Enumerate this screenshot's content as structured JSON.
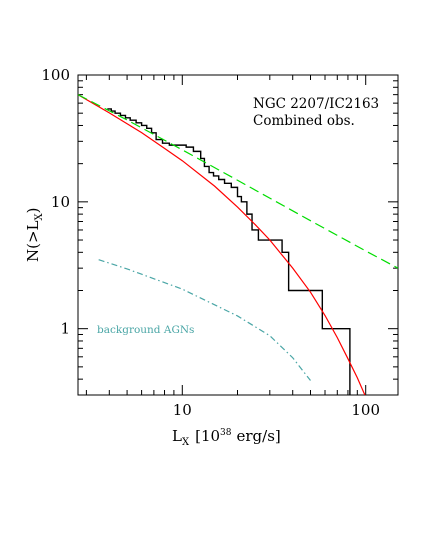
{
  "chart_data": {
    "type": "line",
    "xscale": "log",
    "yscale": "log",
    "xlim": [
      2.7,
      150
    ],
    "ylim": [
      0.3,
      100
    ],
    "x_ticks": [
      10,
      100
    ],
    "x_tick_labels": [
      "10",
      "100"
    ],
    "y_ticks": [
      1,
      10,
      100
    ],
    "y_tick_labels": [
      "1",
      "10",
      "100"
    ],
    "xlabel": {
      "main": "L",
      "sub": "X",
      "unit_pre": "[10",
      "unit_sup": "38",
      "unit_post": "erg/s]"
    },
    "ylabel": {
      "pre": "N(>L",
      "sub": "X",
      "post": ")"
    },
    "annotations": {
      "line1": "NGC 2207/IC2163",
      "line2": "Combined obs.",
      "agn": "background AGNs"
    },
    "colors": {
      "data": "#000000",
      "fit_cutoff": "#ff0000",
      "fit_powerlaw": "#00dd00",
      "agn": "#4aa6a6"
    },
    "series": [
      {
        "style": "step",
        "color": "#000000",
        "x": [
          3.9,
          4.1,
          4.3,
          4.6,
          4.9,
          5.2,
          5.6,
          6.0,
          6.4,
          6.8,
          7.2,
          7.8,
          8.5,
          9.5,
          10.5,
          11.5,
          12.6,
          13.2,
          14.0,
          14.8,
          15.8,
          17.0,
          18.5,
          20.0,
          21.0,
          22.5,
          24.0,
          26.0,
          35.0,
          38.0,
          58.0,
          82.0
        ],
        "y": [
          54,
          52,
          50,
          48,
          46,
          44,
          42,
          40,
          38,
          35,
          31,
          29,
          28,
          28,
          27,
          25,
          22,
          19,
          17,
          16,
          15,
          14,
          13,
          11,
          10,
          8,
          6,
          5,
          4,
          2,
          1,
          0.3
        ]
      },
      {
        "style": "solid",
        "color": "#ff0000",
        "x": [
          2.7,
          4,
          6,
          8,
          10,
          15,
          20,
          25,
          30,
          40,
          50,
          60,
          70,
          80,
          90,
          100,
          110
        ],
        "y": [
          70,
          50.3,
          35.1,
          26.4,
          21.1,
          13.3,
          9.1,
          6.6,
          5.0,
          3.0,
          1.94,
          1.27,
          0.85,
          0.58,
          0.41,
          0.29,
          0.21
        ]
      },
      {
        "style": "dashed",
        "color": "#00dd00",
        "x": [
          2.7,
          5,
          10,
          20,
          50,
          100,
          150
        ],
        "y": [
          70,
          44.2,
          25.7,
          14.8,
          7.1,
          4.1,
          3.0
        ]
      },
      {
        "style": "dash-dot",
        "color": "#4aa6a6",
        "x": [
          3.5,
          5,
          10,
          20,
          30,
          40,
          50
        ],
        "y": [
          3.5,
          2.96,
          2.05,
          1.26,
          0.88,
          0.59,
          0.39
        ]
      }
    ]
  }
}
